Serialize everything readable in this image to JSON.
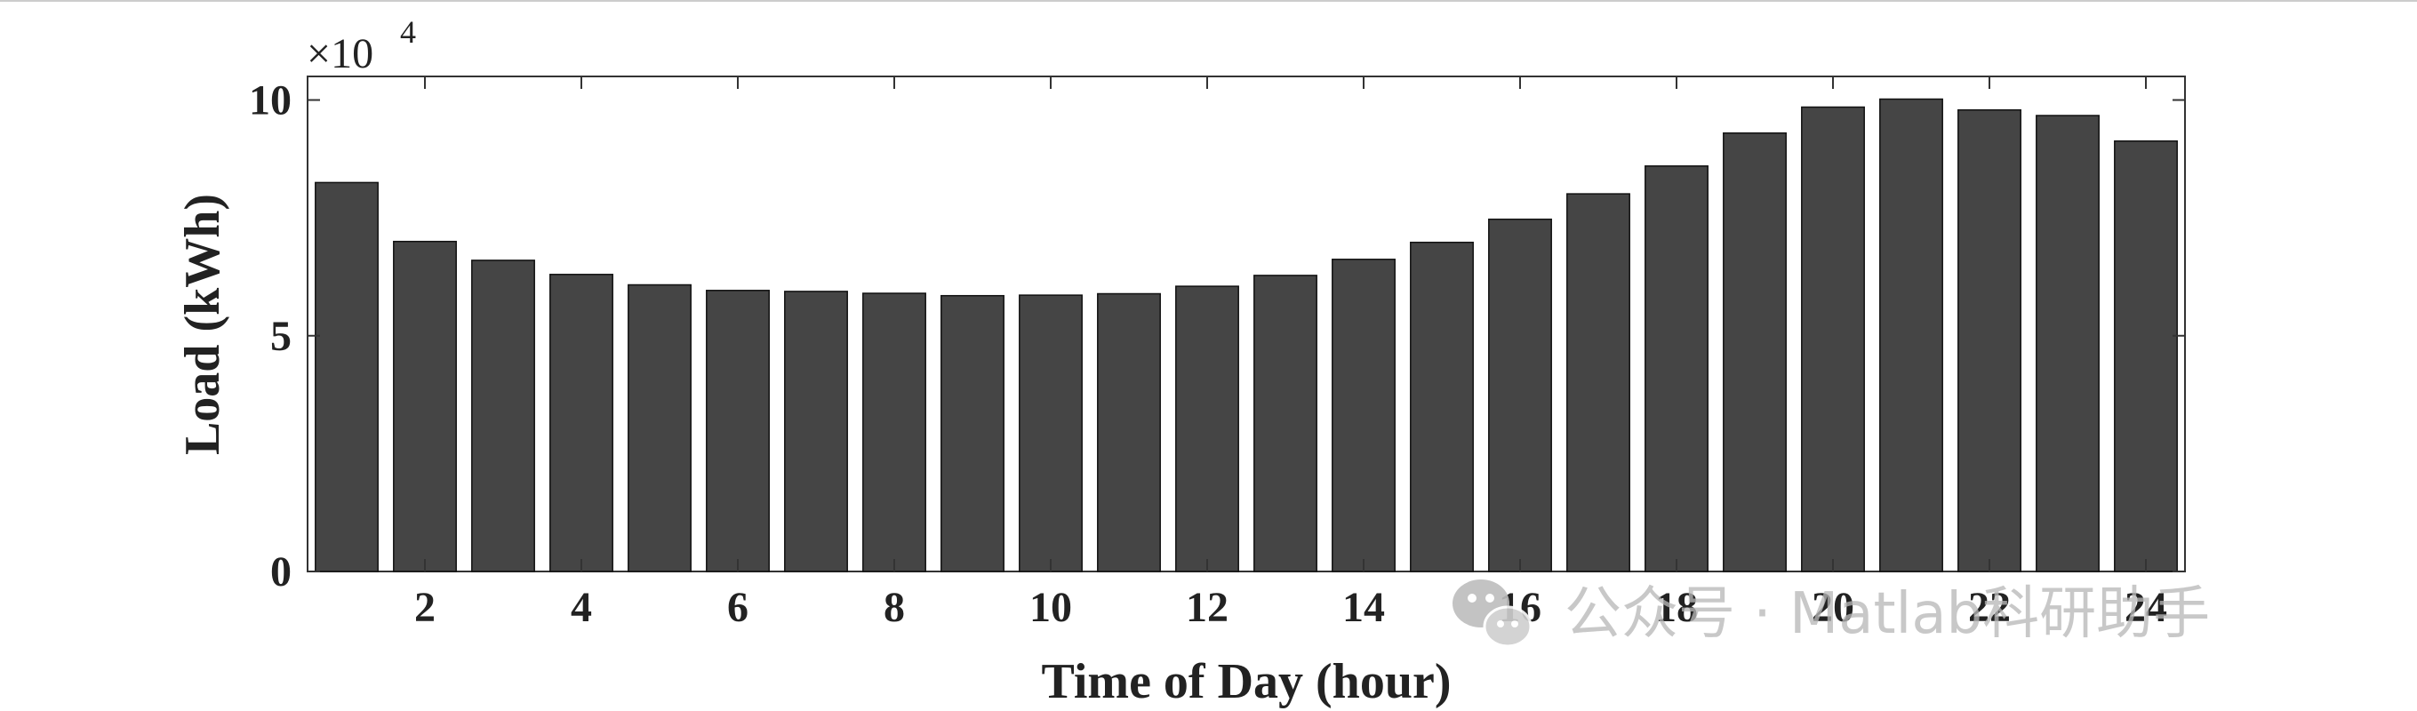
{
  "chart_data": {
    "type": "bar",
    "title": "",
    "xlabel": "Time of Day (hour)",
    "ylabel": "Load (kWh)",
    "y_multiplier_label": "×10",
    "y_multiplier_exponent": "4",
    "categories": [
      "1",
      "2",
      "3",
      "4",
      "5",
      "6",
      "7",
      "8",
      "9",
      "10",
      "11",
      "12",
      "13",
      "14",
      "15",
      "16",
      "17",
      "18",
      "19",
      "20",
      "21",
      "22",
      "23",
      "24"
    ],
    "values": [
      82500,
      70000,
      66000,
      63000,
      60800,
      59600,
      59400,
      59000,
      58500,
      58600,
      58900,
      60500,
      62800,
      66200,
      69800,
      74700,
      80100,
      86000,
      93000,
      98500,
      100200,
      97900,
      96700,
      91300
    ],
    "x_ticks": [
      2,
      4,
      6,
      8,
      10,
      12,
      14,
      16,
      18,
      20,
      22,
      24
    ],
    "x_tick_labels": [
      "2",
      "4",
      "6",
      "8",
      "10",
      "12",
      "14",
      "16",
      "18",
      "20",
      "22",
      "24"
    ],
    "y_ticks": [
      0,
      50000,
      100000
    ],
    "y_tick_labels": [
      "0",
      "5",
      "10"
    ],
    "ylim": [
      0,
      105000
    ],
    "xlim": [
      0.5,
      24.5
    ],
    "grid": false,
    "bar_color": "#454545",
    "bar_edge_color": "#111111"
  },
  "watermark": {
    "text": "公众号 · Matlab科研助手",
    "icon": "wechat-icon"
  }
}
